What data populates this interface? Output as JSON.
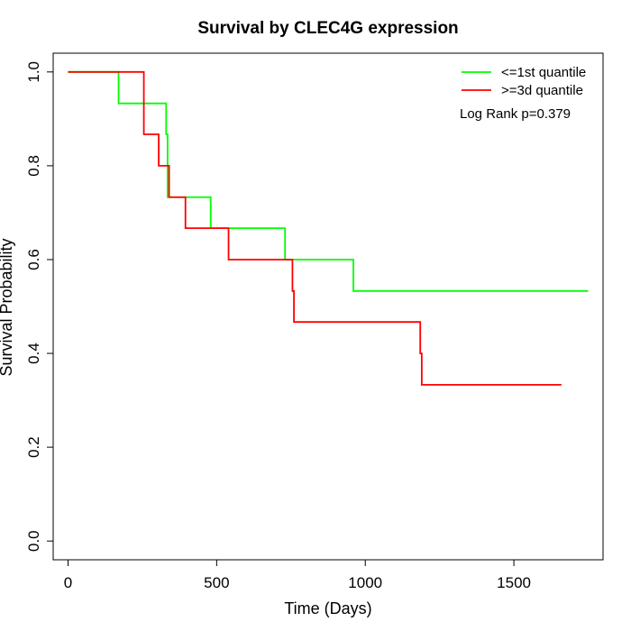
{
  "chart_data": {
    "type": "line",
    "title": "Survival by CLEC4G expression",
    "xlabel": "Time (Days)",
    "ylabel": "Survival Probability",
    "xlim": [
      -50,
      1800
    ],
    "ylim": [
      -0.04,
      1.04
    ],
    "x_ticks": [
      0,
      500,
      1000,
      1500
    ],
    "x_tick_labels": [
      "0",
      "500",
      "1000",
      "1500"
    ],
    "y_ticks": [
      0.0,
      0.2,
      0.4,
      0.6,
      0.8,
      1.0
    ],
    "y_tick_labels": [
      "0.0",
      "0.2",
      "0.4",
      "0.6",
      "0.8",
      "1.0"
    ],
    "grid": false,
    "legend_position": "top-right",
    "annotation": "Log Rank p=0.379",
    "series": [
      {
        "name": "<=1st quantile",
        "color": "#00ff00",
        "step": true,
        "x": [
          0,
          170,
          330,
          335,
          480,
          730,
          960,
          1750
        ],
        "y": [
          1.0,
          0.933,
          0.867,
          0.733,
          0.667,
          0.6,
          0.533,
          0.533
        ]
      },
      {
        "name": ">=3d quantile",
        "color": "#ff0000",
        "step": true,
        "x": [
          0,
          255,
          305,
          340,
          395,
          540,
          755,
          760,
          1185,
          1190,
          1660
        ],
        "y": [
          1.0,
          0.867,
          0.8,
          0.733,
          0.667,
          0.6,
          0.533,
          0.467,
          0.4,
          0.333,
          0.333
        ]
      }
    ]
  }
}
